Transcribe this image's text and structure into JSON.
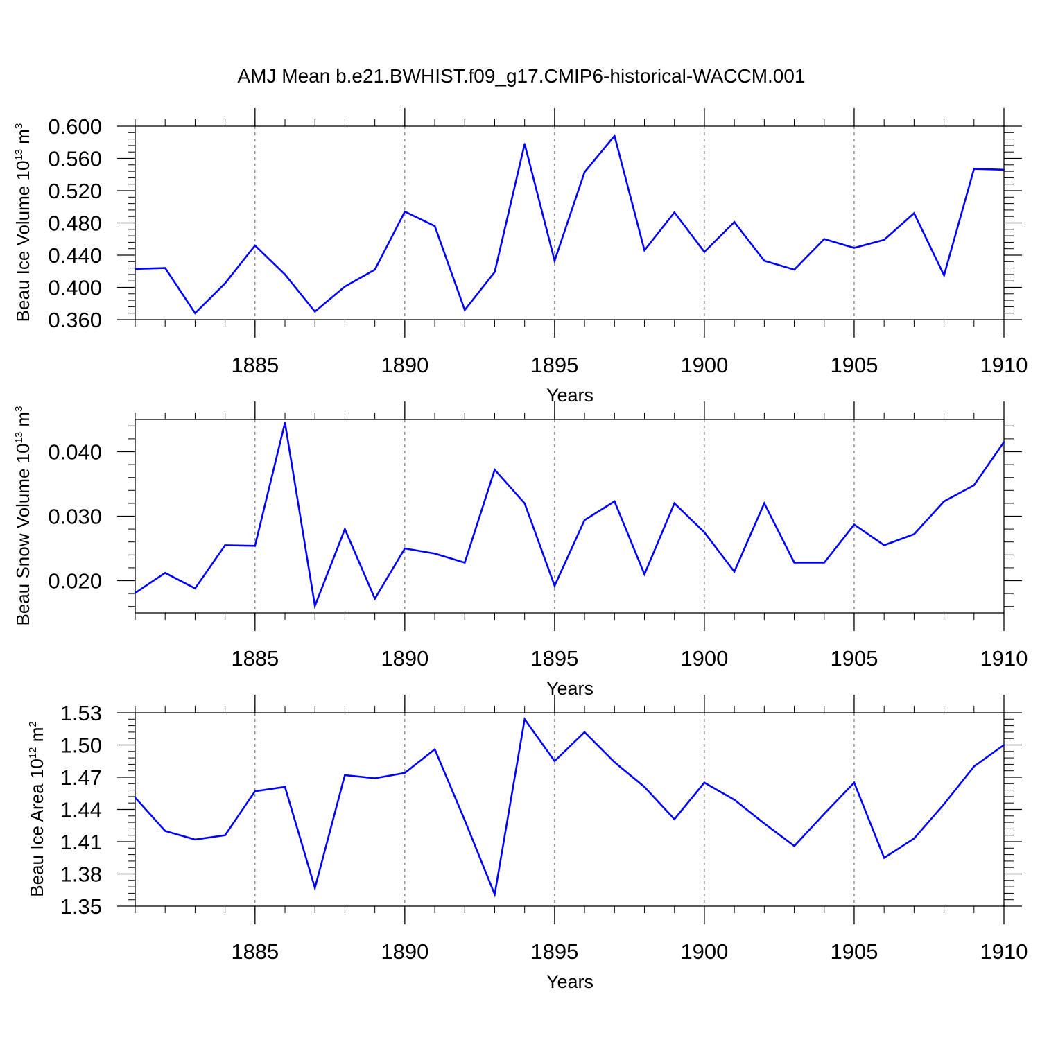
{
  "title": "AMJ Mean b.e21.BWHIST.f09_g17.CMIP6-historical-WACCM.001",
  "colors": {
    "line": "#0000ff",
    "axis": "#000000",
    "grid": "#555555"
  },
  "chart_data": [
    {
      "type": "line",
      "ylabel": {
        "prefix": "Beau Ice Volume 10",
        "exponent": "13",
        "unit": " m",
        "unit_exponent": "3"
      },
      "xlabel": "Years",
      "xlim": [
        1881,
        1910
      ],
      "ylim": [
        0.36,
        0.6
      ],
      "yticks": [
        0.36,
        0.4,
        0.44,
        0.48,
        0.52,
        0.56,
        0.6
      ],
      "ytick_labels": [
        "0.360",
        "0.400",
        "0.440",
        "0.480",
        "0.520",
        "0.560",
        "0.600"
      ],
      "xticks": [
        1885,
        1890,
        1895,
        1900,
        1905,
        1910
      ],
      "xtick_labels": [
        "1885",
        "1890",
        "1895",
        "1900",
        "1905",
        "1910"
      ],
      "x": [
        1881,
        1882,
        1883,
        1884,
        1885,
        1886,
        1887,
        1888,
        1889,
        1890,
        1891,
        1892,
        1893,
        1894,
        1895,
        1896,
        1897,
        1898,
        1899,
        1900,
        1901,
        1902,
        1903,
        1904,
        1905,
        1906,
        1907,
        1908,
        1909,
        1910
      ],
      "values": [
        0.423,
        0.424,
        0.368,
        0.405,
        0.452,
        0.416,
        0.37,
        0.401,
        0.422,
        0.494,
        0.476,
        0.372,
        0.419,
        0.578,
        0.433,
        0.543,
        0.588,
        0.446,
        0.493,
        0.444,
        0.481,
        0.433,
        0.422,
        0.46,
        0.449,
        0.459,
        0.492,
        0.415,
        0.547,
        0.546
      ]
    },
    {
      "type": "line",
      "ylabel": {
        "prefix": "Beau Snow Volume 10",
        "exponent": "13",
        "unit": " m",
        "unit_exponent": "3"
      },
      "xlabel": "Years",
      "xlim": [
        1881,
        1910
      ],
      "ylim": [
        0.015,
        0.045
      ],
      "yticks": [
        0.02,
        0.03,
        0.04
      ],
      "ytick_labels": [
        "0.020",
        "0.030",
        "0.040"
      ],
      "xticks": [
        1885,
        1890,
        1895,
        1900,
        1905,
        1910
      ],
      "xtick_labels": [
        "1885",
        "1890",
        "1895",
        "1900",
        "1905",
        "1910"
      ],
      "x": [
        1881,
        1882,
        1883,
        1884,
        1885,
        1886,
        1887,
        1888,
        1889,
        1890,
        1891,
        1892,
        1893,
        1894,
        1895,
        1896,
        1897,
        1898,
        1899,
        1900,
        1901,
        1902,
        1903,
        1904,
        1905,
        1906,
        1907,
        1908,
        1909,
        1910
      ],
      "values": [
        0.0181,
        0.0212,
        0.0188,
        0.0255,
        0.0254,
        0.0445,
        0.0161,
        0.028,
        0.0172,
        0.025,
        0.0242,
        0.0228,
        0.0372,
        0.032,
        0.0192,
        0.0294,
        0.0323,
        0.021,
        0.032,
        0.0275,
        0.0214,
        0.032,
        0.0228,
        0.0228,
        0.0287,
        0.0255,
        0.0272,
        0.0323,
        0.0348,
        0.0415
      ]
    },
    {
      "type": "line",
      "ylabel": {
        "prefix": "Beau Ice Area 10",
        "exponent": "12",
        "unit": " m",
        "unit_exponent": "2"
      },
      "xlabel": "Years",
      "xlim": [
        1881,
        1910
      ],
      "ylim": [
        1.35,
        1.53
      ],
      "yticks": [
        1.35,
        1.38,
        1.41,
        1.44,
        1.47,
        1.5,
        1.53
      ],
      "ytick_labels": [
        "1.35",
        "1.38",
        "1.41",
        "1.44",
        "1.47",
        "1.50",
        "1.53"
      ],
      "xticks": [
        1885,
        1890,
        1895,
        1900,
        1905,
        1910
      ],
      "xtick_labels": [
        "1885",
        "1890",
        "1895",
        "1900",
        "1905",
        "1910"
      ],
      "x": [
        1881,
        1882,
        1883,
        1884,
        1885,
        1886,
        1887,
        1888,
        1889,
        1890,
        1891,
        1892,
        1893,
        1894,
        1895,
        1896,
        1897,
        1898,
        1899,
        1900,
        1901,
        1902,
        1903,
        1904,
        1905,
        1906,
        1907,
        1908,
        1909,
        1910
      ],
      "values": [
        1.451,
        1.42,
        1.412,
        1.416,
        1.457,
        1.461,
        1.367,
        1.472,
        1.469,
        1.474,
        1.496,
        1.43,
        1.361,
        1.524,
        1.485,
        1.512,
        1.484,
        1.461,
        1.431,
        1.465,
        1.449,
        1.427,
        1.406,
        1.436,
        1.465,
        1.395,
        1.413,
        1.445,
        1.48,
        1.5
      ]
    }
  ]
}
